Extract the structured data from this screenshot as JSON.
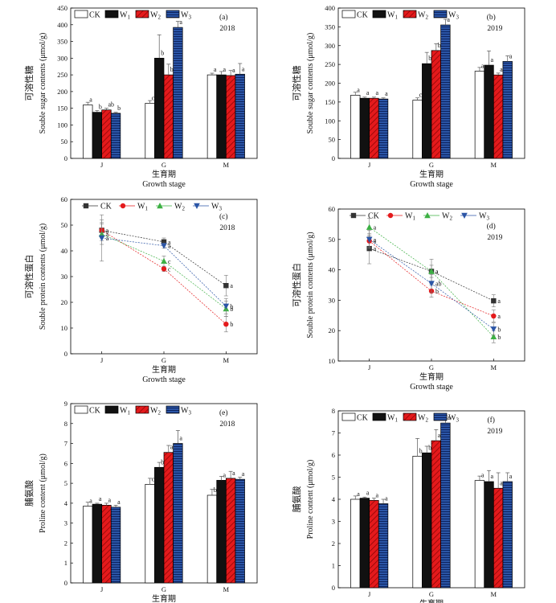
{
  "chart_data": [
    {
      "type": "bar",
      "panel": "(a)",
      "year": "2018",
      "categories": [
        "J",
        "G",
        "M"
      ],
      "xlabel_cn": "生育期",
      "xlabel_en": "Growth stage",
      "ylabel_cn": "可溶性糖",
      "ylabel_en": "Souble sugar contents (μmol/g)",
      "ylim": [
        0,
        450
      ],
      "yticks": [
        0,
        50,
        100,
        150,
        200,
        250,
        300,
        350,
        400,
        450
      ],
      "legend": [
        "CK",
        "W1",
        "W2",
        "W3"
      ],
      "series": [
        {
          "name": "CK",
          "values": [
            160,
            165,
            250
          ],
          "errors": [
            8,
            8,
            5
          ],
          "letters": [
            "a",
            "c",
            "a"
          ]
        },
        {
          "name": "W1",
          "values": [
            138,
            300,
            250
          ],
          "errors": [
            5,
            70,
            10
          ],
          "letters": [
            "b",
            "b",
            "a"
          ]
        },
        {
          "name": "W2",
          "values": [
            145,
            250,
            248
          ],
          "errors": [
            5,
            32,
            15
          ],
          "letters": [
            "ab",
            "b",
            "a"
          ]
        },
        {
          "name": "W3",
          "values": [
            135,
            392,
            252
          ],
          "errors": [
            3,
            18,
            32
          ],
          "letters": [
            "b",
            "a",
            "a"
          ]
        }
      ]
    },
    {
      "type": "bar",
      "panel": "(b)",
      "year": "2019",
      "categories": [
        "J",
        "G",
        "M"
      ],
      "xlabel_cn": "生育期",
      "xlabel_en": "Growth stage",
      "ylabel_cn": "可溶性糖",
      "ylabel_en": "Souble sugar contents (μmol/g)",
      "ylim": [
        0,
        400
      ],
      "yticks": [
        0,
        50,
        100,
        150,
        200,
        250,
        300,
        350,
        400
      ],
      "legend": [
        "CK",
        "W1",
        "W2",
        "W3"
      ],
      "series": [
        {
          "name": "CK",
          "values": [
            168,
            155,
            232
          ],
          "errors": [
            8,
            6,
            10
          ],
          "letters": [
            "a",
            "c",
            "a"
          ]
        },
        {
          "name": "W1",
          "values": [
            160,
            252,
            248
          ],
          "errors": [
            3,
            30,
            38
          ],
          "letters": [
            "a",
            "b",
            "a"
          ]
        },
        {
          "name": "W2",
          "values": [
            160,
            287,
            222
          ],
          "errors": [
            3,
            18,
            5
          ],
          "letters": [
            "a",
            "b",
            "a"
          ]
        },
        {
          "name": "W3",
          "values": [
            158,
            355,
            258
          ],
          "errors": [
            3,
            15,
            15
          ],
          "letters": [
            "a",
            "a",
            "a"
          ]
        }
      ]
    },
    {
      "type": "line",
      "panel": "(c)",
      "year": "2018",
      "categories": [
        "J",
        "G",
        "M"
      ],
      "xlabel_cn": "生育期",
      "xlabel_en": "Growth stage",
      "ylabel_cn": "可溶性蛋白",
      "ylabel_en": "Souble protein contents (μmol/g)",
      "ylim": [
        0,
        60
      ],
      "yticks": [
        0,
        10,
        20,
        30,
        40,
        50,
        60
      ],
      "legend": [
        "CK",
        "W1",
        "W2",
        "W3"
      ],
      "series": [
        {
          "name": "CK",
          "values": [
            48,
            43.5,
            26.5
          ],
          "errors": [
            4,
            1.5,
            4
          ],
          "letters": [
            "a",
            "a",
            "a"
          ]
        },
        {
          "name": "W1",
          "values": [
            48,
            33,
            11.5
          ],
          "errors": [
            3,
            1,
            3
          ],
          "letters": [
            "a",
            "c",
            "b"
          ]
        },
        {
          "name": "W2",
          "values": [
            46.5,
            36,
            17.5
          ],
          "errors": [
            4,
            2,
            3
          ],
          "letters": [
            "a",
            "c",
            "b"
          ]
        },
        {
          "name": "W3",
          "values": [
            45,
            42,
            18.5
          ],
          "errors": [
            9,
            1,
            3
          ],
          "letters": [
            "a",
            "a",
            "b"
          ]
        }
      ]
    },
    {
      "type": "line",
      "panel": "(d)",
      "year": "2019",
      "categories": [
        "J",
        "G",
        "M"
      ],
      "xlabel_cn": "生育期",
      "xlabel_en": "Growth stage",
      "ylabel_cn": "可溶性蛋白",
      "ylabel_en": "Souble protein contents (μmol/g)",
      "ylim": [
        10,
        60
      ],
      "yticks": [
        10,
        20,
        30,
        40,
        50,
        60
      ],
      "legend": [
        "CK",
        "W1",
        "W2",
        "W3"
      ],
      "series": [
        {
          "name": "CK",
          "values": [
            47,
            39.5,
            29.8
          ],
          "errors": [
            5,
            2,
            2
          ],
          "letters": [
            "a",
            "a",
            "a"
          ]
        },
        {
          "name": "W1",
          "values": [
            49.5,
            33,
            24.8
          ],
          "errors": [
            2,
            2,
            2
          ],
          "letters": [
            "a",
            "b",
            "a"
          ]
        },
        {
          "name": "W2",
          "values": [
            54,
            39.5,
            18
          ],
          "errors": [
            3,
            4,
            2
          ],
          "letters": [
            "a",
            "a",
            "b"
          ]
        },
        {
          "name": "W3",
          "values": [
            50,
            35.5,
            20.5
          ],
          "errors": [
            3,
            3,
            2
          ],
          "letters": [
            "a",
            "ab",
            "b"
          ]
        }
      ]
    },
    {
      "type": "bar",
      "panel": "(e)",
      "year": "2018",
      "categories": [
        "J",
        "G",
        "M"
      ],
      "xlabel_cn": "生育期",
      "xlabel_en": "Growth stage",
      "ylabel_cn": "脯氨酸",
      "ylabel_en": "Proline content (μmol/g)",
      "ylim": [
        0,
        9
      ],
      "yticks": [
        0,
        1,
        2,
        3,
        4,
        5,
        6,
        7,
        8,
        9
      ],
      "legend": [
        "CK",
        "W1",
        "W2",
        "W3"
      ],
      "series": [
        {
          "name": "CK",
          "values": [
            3.85,
            4.95,
            4.4
          ],
          "errors": [
            0.2,
            0.3,
            0.3
          ],
          "letters": [
            "a",
            "c",
            "b"
          ]
        },
        {
          "name": "W1",
          "values": [
            3.95,
            5.8,
            5.15
          ],
          "errors": [
            0.05,
            0.25,
            0.2
          ],
          "letters": [
            "a",
            "b",
            "a"
          ]
        },
        {
          "name": "W2",
          "values": [
            3.9,
            6.55,
            5.25
          ],
          "errors": [
            0.1,
            0.35,
            0.35
          ],
          "letters": [
            "a",
            "a",
            "a"
          ]
        },
        {
          "name": "W3",
          "values": [
            3.8,
            7.0,
            5.2
          ],
          "errors": [
            0.1,
            0.65,
            0.1
          ],
          "letters": [
            "a",
            "a",
            "a"
          ]
        }
      ]
    },
    {
      "type": "bar",
      "panel": "(f)",
      "year": "2019",
      "categories": [
        "J",
        "G",
        "M"
      ],
      "xlabel_cn": "生育期",
      "xlabel_en": "Growth stage",
      "ylabel_cn": "脯氨酸",
      "ylabel_en": "Proline content (μmol/g)",
      "ylim": [
        0,
        8
      ],
      "yticks": [
        0,
        1,
        2,
        3,
        4,
        5,
        6,
        7,
        8
      ],
      "legend": [
        "CK",
        "W1",
        "W2",
        "W3"
      ],
      "series": [
        {
          "name": "CK",
          "values": [
            4.0,
            5.95,
            4.85
          ],
          "errors": [
            0.15,
            0.8,
            0.2
          ],
          "letters": [
            "a",
            "b",
            "a"
          ]
        },
        {
          "name": "W1",
          "values": [
            4.05,
            6.1,
            4.8
          ],
          "errors": [
            0.05,
            0.3,
            0.5
          ],
          "letters": [
            "a",
            "b",
            "a"
          ]
        },
        {
          "name": "W2",
          "values": [
            3.95,
            6.65,
            4.5
          ],
          "errors": [
            0.1,
            0.5,
            0.7
          ],
          "letters": [
            "a",
            "ab",
            "a"
          ]
        },
        {
          "name": "W3",
          "values": [
            3.8,
            7.45,
            4.8
          ],
          "errors": [
            0.2,
            0.35,
            0.4
          ],
          "letters": [
            "a",
            "a",
            "a"
          ]
        }
      ]
    }
  ],
  "colors": {
    "CK": "#ffffff",
    "W1": "#111111",
    "W2": "#e41a1c",
    "W3": "#2b55a6",
    "line_CK": "#333333",
    "line_W1": "#e41a1c",
    "line_W2": "#3cb043",
    "line_W3": "#2b55a6"
  }
}
